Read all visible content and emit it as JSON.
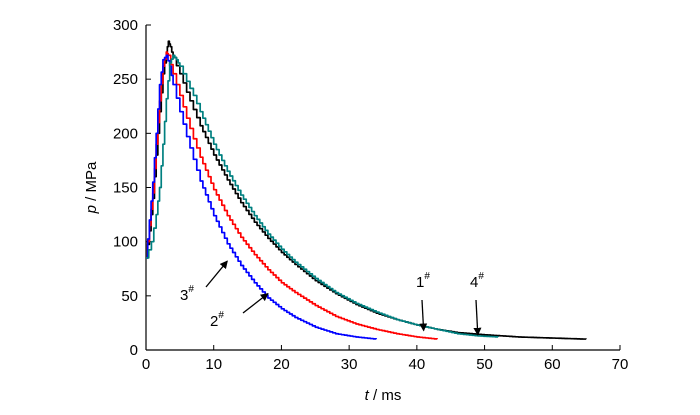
{
  "chart_data": {
    "type": "line",
    "xlabel": {
      "var": "t",
      "unit": " / ms"
    },
    "ylabel": {
      "var": "p",
      "unit": " / MPa"
    },
    "xlim": [
      0,
      70
    ],
    "ylim": [
      0,
      300
    ],
    "xticks": [
      "0",
      "10",
      "20",
      "30",
      "40",
      "50",
      "60",
      "70"
    ],
    "yticks": [
      "0",
      "50",
      "100",
      "150",
      "200",
      "250",
      "300"
    ],
    "grid": false,
    "colors": {
      "1": "#000000",
      "2": "#ff0000",
      "3": "#0000ff",
      "4": "#008080"
    },
    "series": [
      {
        "label": "1",
        "points": [
          [
            0,
            85
          ],
          [
            0.5,
            110
          ],
          [
            1,
            140
          ],
          [
            1.5,
            180
          ],
          [
            2,
            220
          ],
          [
            2.5,
            255
          ],
          [
            3,
            275
          ],
          [
            3.3,
            285
          ],
          [
            3.6,
            280
          ],
          [
            4,
            270
          ],
          [
            5,
            255
          ],
          [
            6,
            238
          ],
          [
            7,
            222
          ],
          [
            8,
            207
          ],
          [
            10,
            180
          ],
          [
            12,
            157
          ],
          [
            14,
            136
          ],
          [
            16,
            118
          ],
          [
            18,
            103
          ],
          [
            20,
            90
          ],
          [
            22,
            79
          ],
          [
            25,
            64
          ],
          [
            28,
            52
          ],
          [
            31,
            42
          ],
          [
            34,
            34
          ],
          [
            37,
            28
          ],
          [
            40,
            23
          ],
          [
            43,
            19
          ],
          [
            46,
            16
          ],
          [
            50,
            14
          ],
          [
            55,
            12
          ],
          [
            60,
            11
          ],
          [
            65,
            10
          ]
        ]
      },
      {
        "label": "2",
        "points": [
          [
            0,
            85
          ],
          [
            0.5,
            115
          ],
          [
            1,
            145
          ],
          [
            1.5,
            190
          ],
          [
            2,
            230
          ],
          [
            2.5,
            262
          ],
          [
            3,
            275
          ],
          [
            3.3,
            272
          ],
          [
            4,
            255
          ],
          [
            5,
            235
          ],
          [
            6,
            214
          ],
          [
            7,
            195
          ],
          [
            8,
            178
          ],
          [
            10,
            148
          ],
          [
            12,
            124
          ],
          [
            14,
            104
          ],
          [
            16,
            88
          ],
          [
            18,
            74
          ],
          [
            20,
            62
          ],
          [
            22,
            53
          ],
          [
            25,
            41
          ],
          [
            28,
            31
          ],
          [
            31,
            24
          ],
          [
            34,
            19
          ],
          [
            37,
            15
          ],
          [
            40,
            12
          ],
          [
            43,
            10
          ]
        ]
      },
      {
        "label": "3",
        "points": [
          [
            0,
            85
          ],
          [
            0.5,
            120
          ],
          [
            1,
            155
          ],
          [
            1.5,
            200
          ],
          [
            2,
            245
          ],
          [
            2.5,
            268
          ],
          [
            3,
            272
          ],
          [
            3.5,
            262
          ],
          [
            4,
            245
          ],
          [
            5,
            220
          ],
          [
            6,
            197
          ],
          [
            7,
            176
          ],
          [
            8,
            156
          ],
          [
            10,
            124
          ],
          [
            12,
            98
          ],
          [
            14,
            78
          ],
          [
            16,
            62
          ],
          [
            18,
            48
          ],
          [
            20,
            38
          ],
          [
            22,
            30
          ],
          [
            25,
            21
          ],
          [
            28,
            15
          ],
          [
            31,
            12
          ],
          [
            34,
            10
          ]
        ]
      },
      {
        "label": "4",
        "points": [
          [
            0,
            85
          ],
          [
            0.8,
            100
          ],
          [
            1.5,
            125
          ],
          [
            2,
            150
          ],
          [
            2.5,
            190
          ],
          [
            3,
            232
          ],
          [
            3.5,
            265
          ],
          [
            4,
            272
          ],
          [
            4.5,
            268
          ],
          [
            5,
            262
          ],
          [
            6,
            248
          ],
          [
            7,
            235
          ],
          [
            8,
            220
          ],
          [
            10,
            190
          ],
          [
            12,
            165
          ],
          [
            14,
            143
          ],
          [
            16,
            124
          ],
          [
            18,
            107
          ],
          [
            20,
            93
          ],
          [
            22,
            81
          ],
          [
            25,
            66
          ],
          [
            28,
            53
          ],
          [
            31,
            43
          ],
          [
            34,
            35
          ],
          [
            37,
            28
          ],
          [
            40,
            23
          ],
          [
            43,
            19
          ],
          [
            46,
            15
          ],
          [
            49,
            13
          ],
          [
            52,
            12
          ]
        ]
      }
    ],
    "annotations": [
      {
        "label": "3",
        "sup": "#",
        "series": "3",
        "arrow_to": [
          12,
          82
        ]
      },
      {
        "label": "2",
        "sup": "#",
        "series": "2",
        "arrow_to": [
          18,
          52
        ]
      },
      {
        "label": "1",
        "sup": "#",
        "series": "1",
        "arrow_to": [
          41,
          18
        ]
      },
      {
        "label": "4",
        "sup": "#",
        "series": "4",
        "arrow_to": [
          49,
          14
        ]
      }
    ]
  }
}
